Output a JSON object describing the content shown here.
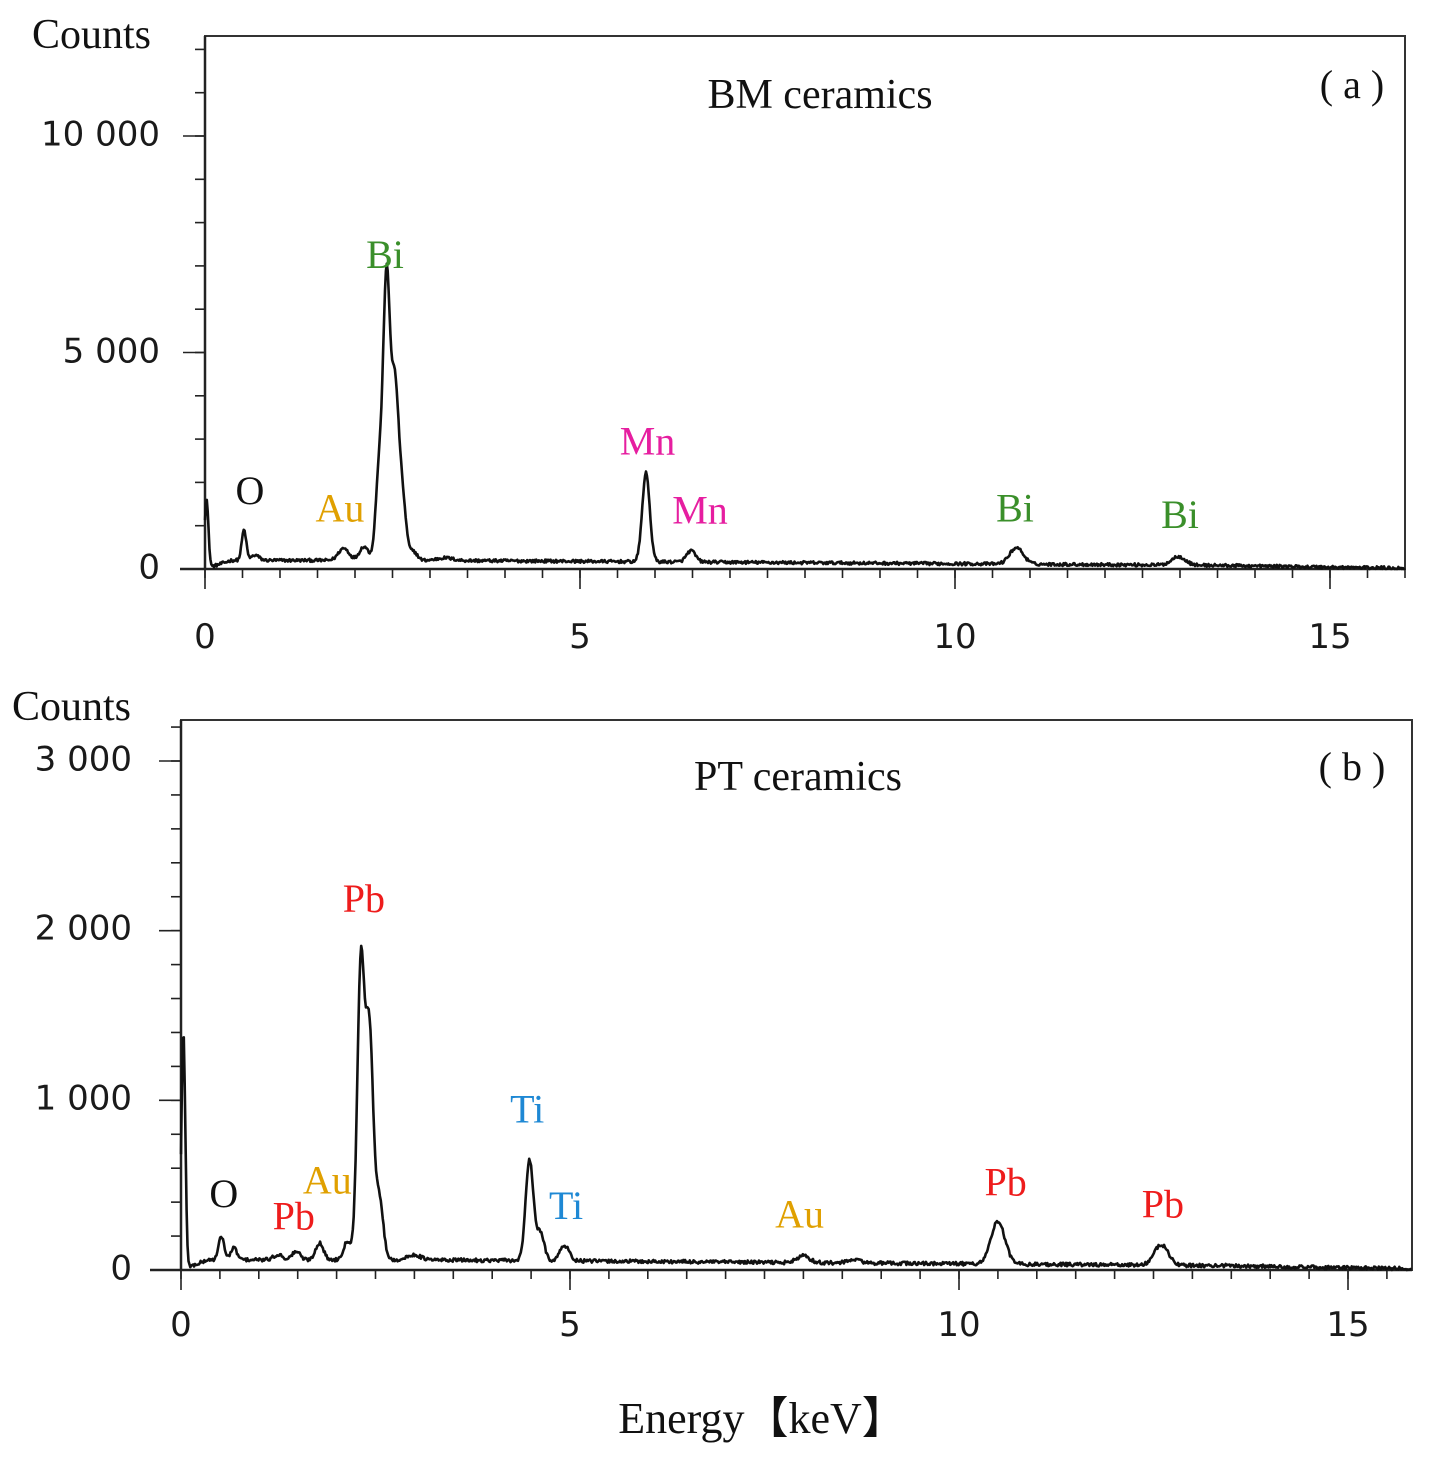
{
  "colors": {
    "Bi": "#3a8f2a",
    "Au": "#e0a000",
    "Mn": "#e61ea0",
    "O": "#111111",
    "Pb": "#ee1c1c",
    "Ti": "#1e88d4",
    "line": "#111111"
  },
  "chart_data": [
    {
      "id": "a",
      "type": "line",
      "title": "BM ceramics",
      "panel_label": "( a )",
      "ylabel": "Counts",
      "xlabel": "",
      "xlim": [
        0,
        16
      ],
      "ylim": [
        0,
        12500
      ],
      "xticks": [
        0,
        5,
        10,
        15
      ],
      "xtick_labels": [
        "0",
        "5",
        "10",
        "15"
      ],
      "yticks": [
        0,
        5000,
        10000
      ],
      "ytick_labels": [
        "0",
        "5 000",
        "10 000"
      ],
      "baseline": 200,
      "peaks": [
        {
          "x": 0.02,
          "y": 1600,
          "w": 0.025
        },
        {
          "x": 0.52,
          "y": 700,
          "w": 0.03
        },
        {
          "x": 0.67,
          "y": 120,
          "w": 0.05
        },
        {
          "x": 1.85,
          "y": 280,
          "w": 0.07
        },
        {
          "x": 2.12,
          "y": 320,
          "w": 0.06
        },
        {
          "x": 2.32,
          "y": 2000,
          "w": 0.045
        },
        {
          "x": 2.42,
          "y": 6300,
          "w": 0.045
        },
        {
          "x": 2.53,
          "y": 3900,
          "w": 0.05
        },
        {
          "x": 2.63,
          "y": 1400,
          "w": 0.05
        },
        {
          "x": 2.78,
          "y": 200,
          "w": 0.05
        },
        {
          "x": 3.2,
          "y": 60,
          "w": 0.1
        },
        {
          "x": 5.88,
          "y": 2050,
          "w": 0.05
        },
        {
          "x": 6.48,
          "y": 260,
          "w": 0.06
        },
        {
          "x": 10.82,
          "y": 380,
          "w": 0.09
        },
        {
          "x": 12.98,
          "y": 200,
          "w": 0.09
        }
      ],
      "annotations": [
        {
          "text": "O",
          "x": 0.6,
          "y": 1500,
          "element": "O"
        },
        {
          "text": "Au",
          "x": 1.8,
          "y": 1100,
          "element": "Au"
        },
        {
          "text": "Bi",
          "x": 2.4,
          "y": 6950,
          "element": "Bi"
        },
        {
          "text": "Mn",
          "x": 5.9,
          "y": 2650,
          "element": "Mn"
        },
        {
          "text": "Mn",
          "x": 6.6,
          "y": 1050,
          "element": "Mn"
        },
        {
          "text": "Bi",
          "x": 10.8,
          "y": 1100,
          "element": "Bi"
        },
        {
          "text": "Bi",
          "x": 13.0,
          "y": 950,
          "element": "Bi"
        }
      ]
    },
    {
      "id": "b",
      "type": "line",
      "title": "PT ceramics",
      "panel_label": "( b )",
      "ylabel": "Counts",
      "xlabel": "Energy【keV】",
      "xlim": [
        0,
        16
      ],
      "ylim": [
        0,
        3250
      ],
      "xticks": [
        0,
        5,
        10,
        15
      ],
      "xtick_labels": [
        "0",
        "5",
        "10",
        "15"
      ],
      "yticks": [
        0,
        1000,
        2000,
        3000
      ],
      "ytick_labels": [
        "0",
        "1 000",
        "2 000",
        "3 000"
      ],
      "baseline": 60,
      "peaks": [
        {
          "x": 0.03,
          "y": 1400,
          "w": 0.025
        },
        {
          "x": 0.52,
          "y": 140,
          "w": 0.035
        },
        {
          "x": 0.68,
          "y": 70,
          "w": 0.04
        },
        {
          "x": 1.25,
          "y": 30,
          "w": 0.06
        },
        {
          "x": 1.48,
          "y": 50,
          "w": 0.05
        },
        {
          "x": 1.78,
          "y": 100,
          "w": 0.05
        },
        {
          "x": 2.14,
          "y": 110,
          "w": 0.05
        },
        {
          "x": 2.31,
          "y": 1700,
          "w": 0.045
        },
        {
          "x": 2.42,
          "y": 1350,
          "w": 0.05
        },
        {
          "x": 2.55,
          "y": 350,
          "w": 0.05
        },
        {
          "x": 3.0,
          "y": 30,
          "w": 0.08
        },
        {
          "x": 4.48,
          "y": 590,
          "w": 0.05
        },
        {
          "x": 4.62,
          "y": 160,
          "w": 0.05
        },
        {
          "x": 4.93,
          "y": 90,
          "w": 0.06
        },
        {
          "x": 8.0,
          "y": 40,
          "w": 0.08
        },
        {
          "x": 8.66,
          "y": 20,
          "w": 0.08
        },
        {
          "x": 10.5,
          "y": 250,
          "w": 0.09
        },
        {
          "x": 12.6,
          "y": 120,
          "w": 0.09
        }
      ],
      "annotations": [
        {
          "text": "O",
          "x": 0.55,
          "y": 370,
          "element": "O"
        },
        {
          "text": "Pb",
          "x": 1.45,
          "y": 240,
          "element": "Pb"
        },
        {
          "text": "Au",
          "x": 1.88,
          "y": 450,
          "element": "Au"
        },
        {
          "text": "Pb",
          "x": 2.35,
          "y": 2110,
          "element": "Pb"
        },
        {
          "text": "Ti",
          "x": 4.45,
          "y": 870,
          "element": "Ti"
        },
        {
          "text": "Ti",
          "x": 4.95,
          "y": 300,
          "element": "Ti"
        },
        {
          "text": "Au",
          "x": 7.95,
          "y": 250,
          "element": "Au"
        },
        {
          "text": "Pb",
          "x": 10.6,
          "y": 440,
          "element": "Pb"
        },
        {
          "text": "Pb",
          "x": 12.62,
          "y": 310,
          "element": "Pb"
        }
      ]
    }
  ]
}
